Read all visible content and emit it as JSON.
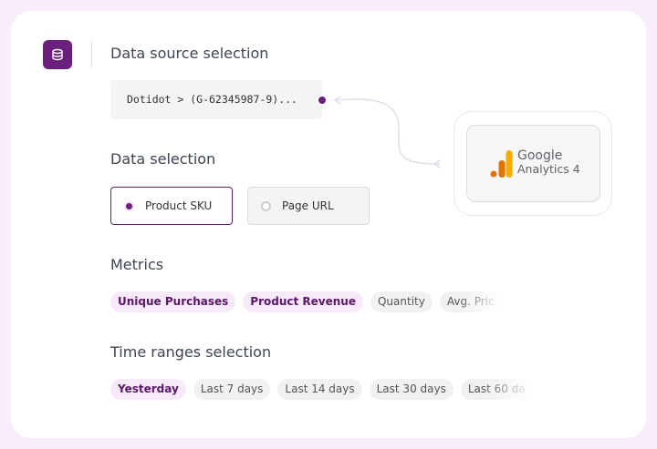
{
  "data_source": {
    "title": "Data source selection",
    "value": "Dotidot > (G-62345987-9)..."
  },
  "integration": {
    "brand": "Google",
    "product": "Analytics 4"
  },
  "data_selection": {
    "title": "Data selection",
    "options": [
      {
        "label": "Product SKU",
        "selected": true
      },
      {
        "label": "Page URL",
        "selected": false
      }
    ]
  },
  "metrics": {
    "title": "Metrics",
    "chips": [
      {
        "label": "Unique Purchases",
        "active": true
      },
      {
        "label": "Product Revenue",
        "active": true
      },
      {
        "label": "Quantity",
        "active": false
      },
      {
        "label": "Avg. Pric",
        "active": false
      }
    ]
  },
  "time_ranges": {
    "title": "Time ranges selection",
    "chips": [
      {
        "label": "Yesterday",
        "active": true
      },
      {
        "label": "Last 7 days",
        "active": false
      },
      {
        "label": "Last 14 days",
        "active": false
      },
      {
        "label": "Last 30 days",
        "active": false
      },
      {
        "label": "Last 60 da",
        "active": false
      }
    ]
  }
}
